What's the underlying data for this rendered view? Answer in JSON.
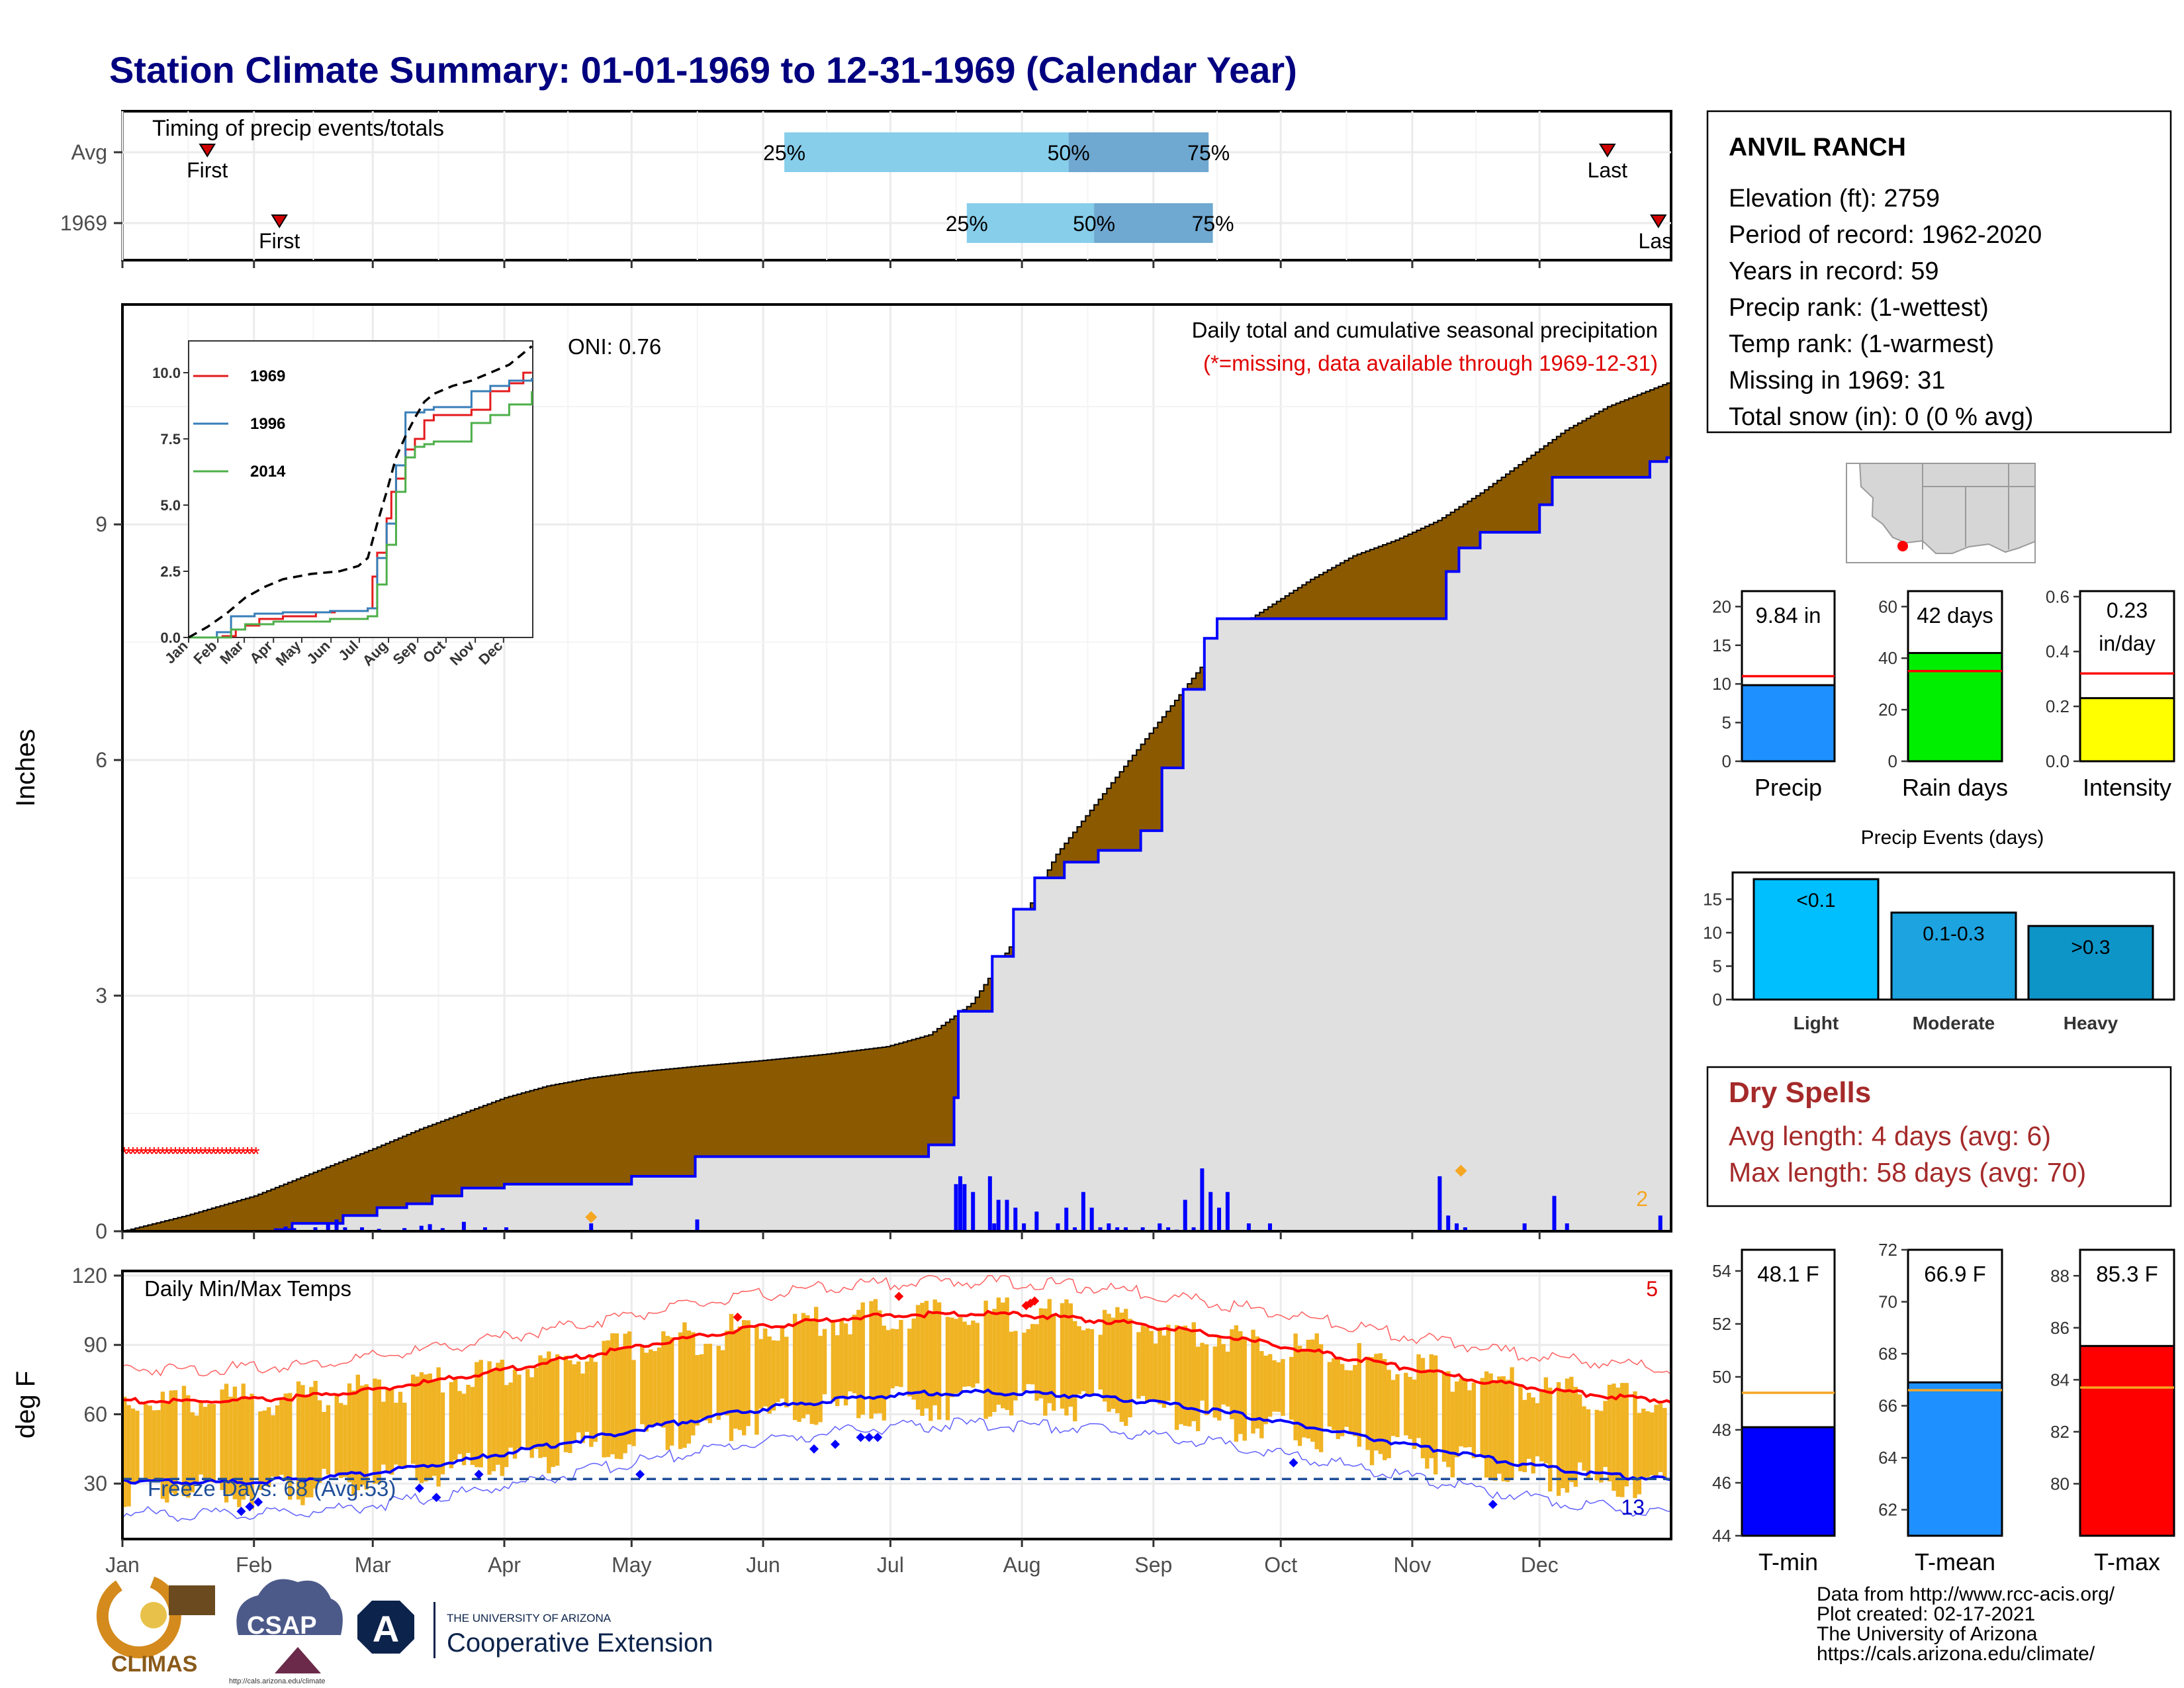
{
  "title": "Station Climate Summary: 01-01-1969 to 12-31-1969 (Calendar Year)",
  "timing_panel": {
    "title": "Timing of precip events/totals",
    "rows": [
      {
        "label": "Avg",
        "first_doy": 20,
        "last_doy": 350,
        "p25_doy": 156,
        "p50_doy": 223,
        "p75_doy": 256,
        "first_label": "First",
        "last_label": "Last",
        "p25_label": "25%",
        "p50_label": "50%",
        "p75_label": "75%"
      },
      {
        "label": "1969",
        "first_doy": 37,
        "last_doy": 362,
        "p25_doy": 199,
        "p50_doy": 229,
        "p75_doy": 257,
        "first_label": "First",
        "last_label": "Last",
        "p25_label": "25%",
        "p50_label": "50%",
        "p75_label": "75%"
      }
    ]
  },
  "precip_panel": {
    "ylabel": "Inches",
    "yticks": [
      0,
      3,
      6,
      9
    ],
    "ylim": [
      0,
      11.8
    ],
    "label_main": "Daily total and cumulative seasonal precipitation",
    "label_missing": "(*=missing, data available through 1969-12-31)",
    "oni_label": "ONI: 0.76",
    "missing_count": "2",
    "missing_range_doy": [
      0,
      31
    ],
    "missing_value": 1.0,
    "avg_cum": [
      [
        0,
        0
      ],
      [
        15,
        0.2
      ],
      [
        31,
        0.45
      ],
      [
        45,
        0.75
      ],
      [
        59,
        1.05
      ],
      [
        70,
        1.3
      ],
      [
        80,
        1.5
      ],
      [
        90,
        1.7
      ],
      [
        100,
        1.85
      ],
      [
        110,
        1.95
      ],
      [
        120,
        2.02
      ],
      [
        135,
        2.1
      ],
      [
        150,
        2.17
      ],
      [
        165,
        2.25
      ],
      [
        180,
        2.35
      ],
      [
        190,
        2.5
      ],
      [
        200,
        2.9
      ],
      [
        210,
        3.7
      ],
      [
        215,
        4.3
      ],
      [
        220,
        4.8
      ],
      [
        230,
        5.5
      ],
      [
        240,
        6.2
      ],
      [
        250,
        6.9
      ],
      [
        260,
        7.6
      ],
      [
        270,
        7.95
      ],
      [
        280,
        8.3
      ],
      [
        290,
        8.6
      ],
      [
        300,
        8.8
      ],
      [
        310,
        9.05
      ],
      [
        320,
        9.4
      ],
      [
        330,
        9.8
      ],
      [
        340,
        10.2
      ],
      [
        350,
        10.5
      ],
      [
        364,
        10.8
      ]
    ],
    "obs_cum": [
      [
        0,
        0
      ],
      [
        36,
        0.02
      ],
      [
        40,
        0.1
      ],
      [
        50,
        0.1
      ],
      [
        52,
        0.2
      ],
      [
        60,
        0.3
      ],
      [
        67,
        0.35
      ],
      [
        73,
        0.45
      ],
      [
        80,
        0.55
      ],
      [
        90,
        0.6
      ],
      [
        120,
        0.7
      ],
      [
        135,
        0.95
      ],
      [
        190,
        1.1
      ],
      [
        195,
        1.1
      ],
      [
        196,
        1.7
      ],
      [
        197,
        2.8
      ],
      [
        205,
        3.5
      ],
      [
        210,
        4.1
      ],
      [
        215,
        4.5
      ],
      [
        222,
        4.7
      ],
      [
        230,
        4.85
      ],
      [
        240,
        5.1
      ],
      [
        245,
        5.9
      ],
      [
        250,
        6.9
      ],
      [
        255,
        7.55
      ],
      [
        258,
        7.8
      ],
      [
        310,
        7.8
      ],
      [
        312,
        8.4
      ],
      [
        315,
        8.7
      ],
      [
        320,
        8.9
      ],
      [
        330,
        8.9
      ],
      [
        334,
        9.25
      ],
      [
        337,
        9.6
      ],
      [
        355,
        9.6
      ],
      [
        360,
        9.8
      ],
      [
        364,
        9.85
      ]
    ],
    "daily_bars": [
      [
        38,
        0.06
      ],
      [
        40,
        0.04
      ],
      [
        45,
        0.05
      ],
      [
        48,
        0.1
      ],
      [
        50,
        0.15
      ],
      [
        52,
        0.05
      ],
      [
        56,
        0.05
      ],
      [
        60,
        0.03
      ],
      [
        66,
        0.04
      ],
      [
        70,
        0.07
      ],
      [
        72,
        0.09
      ],
      [
        75,
        0.04
      ],
      [
        80,
        0.12
      ],
      [
        85,
        0.05
      ],
      [
        90,
        0.05
      ],
      [
        110,
        0.1
      ],
      [
        135,
        0.15
      ],
      [
        196,
        0.6
      ],
      [
        197,
        0.7
      ],
      [
        198,
        0.6
      ],
      [
        200,
        0.5
      ],
      [
        204,
        0.7
      ],
      [
        205,
        0.1
      ],
      [
        206,
        0.4
      ],
      [
        208,
        0.4
      ],
      [
        210,
        0.3
      ],
      [
        212,
        0.1
      ],
      [
        215,
        0.25
      ],
      [
        220,
        0.1
      ],
      [
        222,
        0.3
      ],
      [
        224,
        0.05
      ],
      [
        226,
        0.5
      ],
      [
        228,
        0.3
      ],
      [
        230,
        0.05
      ],
      [
        232,
        0.1
      ],
      [
        234,
        0.05
      ],
      [
        236,
        0.05
      ],
      [
        240,
        0.05
      ],
      [
        244,
        0.1
      ],
      [
        246,
        0.05
      ],
      [
        248,
        0.02
      ],
      [
        250,
        0.4
      ],
      [
        252,
        0.05
      ],
      [
        254,
        0.8
      ],
      [
        256,
        0.5
      ],
      [
        258,
        0.3
      ],
      [
        260,
        0.5
      ],
      [
        265,
        0.1
      ],
      [
        270,
        0.1
      ],
      [
        310,
        0.7
      ],
      [
        312,
        0.2
      ],
      [
        314,
        0.1
      ],
      [
        316,
        0.05
      ],
      [
        330,
        0.1
      ],
      [
        337,
        0.45
      ],
      [
        340,
        0.1
      ],
      [
        362,
        0.2
      ]
    ],
    "extreme_markers_doy": [
      [
        110,
        0.18
      ],
      [
        315,
        0.77
      ]
    ]
  },
  "inset": {
    "yticks": [
      "0.0",
      "2.5",
      "5.0",
      "7.5",
      "10.0"
    ],
    "xticks": [
      "Jan",
      "Feb",
      "Mar",
      "Apr",
      "May",
      "Jun",
      "Jul",
      "Aug",
      "Sep",
      "Oct",
      "Nov",
      "Dec"
    ],
    "series": [
      {
        "name": "1969",
        "color": "#e41a1c",
        "points": [
          [
            0,
            0
          ],
          [
            36,
            0.05
          ],
          [
            50,
            0.3
          ],
          [
            60,
            0.45
          ],
          [
            75,
            0.7
          ],
          [
            100,
            0.8
          ],
          [
            135,
            0.95
          ],
          [
            155,
            1.0
          ],
          [
            190,
            1.1
          ],
          [
            195,
            2.3
          ],
          [
            200,
            3.2
          ],
          [
            210,
            4.5
          ],
          [
            215,
            5.5
          ],
          [
            220,
            6.0
          ],
          [
            230,
            7.1
          ],
          [
            240,
            7.5
          ],
          [
            250,
            8.2
          ],
          [
            260,
            8.4
          ],
          [
            300,
            8.6
          ],
          [
            320,
            9.3
          ],
          [
            340,
            9.6
          ],
          [
            355,
            10.0
          ],
          [
            364,
            10.0
          ]
        ]
      },
      {
        "name": "1996",
        "color": "#377eb8",
        "points": [
          [
            0,
            0
          ],
          [
            30,
            0.2
          ],
          [
            45,
            0.8
          ],
          [
            70,
            0.9
          ],
          [
            100,
            0.95
          ],
          [
            150,
            1.0
          ],
          [
            190,
            1.1
          ],
          [
            200,
            3.0
          ],
          [
            210,
            4.3
          ],
          [
            220,
            6.5
          ],
          [
            230,
            8.5
          ],
          [
            240,
            8.5
          ],
          [
            250,
            8.6
          ],
          [
            260,
            8.7
          ],
          [
            300,
            9.3
          ],
          [
            320,
            9.5
          ],
          [
            340,
            9.7
          ],
          [
            364,
            9.8
          ]
        ]
      },
      {
        "name": "2014",
        "color": "#4daf4a",
        "points": [
          [
            0,
            0
          ],
          [
            45,
            0.3
          ],
          [
            60,
            0.5
          ],
          [
            90,
            0.6
          ],
          [
            150,
            0.7
          ],
          [
            190,
            0.8
          ],
          [
            200,
            2.0
          ],
          [
            210,
            3.5
          ],
          [
            220,
            5.5
          ],
          [
            230,
            6.8
          ],
          [
            240,
            7.2
          ],
          [
            250,
            7.3
          ],
          [
            260,
            7.4
          ],
          [
            300,
            8.1
          ],
          [
            320,
            8.4
          ],
          [
            340,
            8.8
          ],
          [
            364,
            9.3
          ]
        ]
      }
    ],
    "avg_points": [
      [
        0,
        0
      ],
      [
        20,
        0.4
      ],
      [
        40,
        0.9
      ],
      [
        60,
        1.5
      ],
      [
        80,
        1.9
      ],
      [
        100,
        2.2
      ],
      [
        130,
        2.4
      ],
      [
        160,
        2.5
      ],
      [
        180,
        2.7
      ],
      [
        190,
        3.0
      ],
      [
        200,
        4.3
      ],
      [
        210,
        5.5
      ],
      [
        220,
        6.8
      ],
      [
        230,
        7.6
      ],
      [
        240,
        8.3
      ],
      [
        250,
        8.9
      ],
      [
        260,
        9.2
      ],
      [
        280,
        9.5
      ],
      [
        300,
        9.7
      ],
      [
        320,
        10.0
      ],
      [
        340,
        10.3
      ],
      [
        364,
        11.0
      ]
    ]
  },
  "temp_panel": {
    "ylabel": "deg F",
    "yticks": [
      30,
      60,
      90,
      120
    ],
    "ylim": [
      6,
      122
    ],
    "title": "Daily Min/Max Temps",
    "freeze_label": "Freeze Days: 68 (Avg:53)",
    "freeze_line": 32,
    "count_red": "5",
    "count_blue": "13",
    "record_high_doy": [
      [
        145,
        102
      ],
      [
        183,
        111
      ],
      [
        213,
        107
      ],
      [
        214,
        108
      ],
      [
        215,
        109
      ]
    ],
    "record_low_doy": [
      [
        28,
        18
      ],
      [
        30,
        20
      ],
      [
        32,
        22
      ],
      [
        70,
        28
      ],
      [
        74,
        24
      ],
      [
        84,
        34
      ],
      [
        122,
        34
      ],
      [
        163,
        45
      ],
      [
        168,
        47
      ],
      [
        174,
        50
      ],
      [
        176,
        50
      ],
      [
        178,
        50
      ],
      [
        276,
        39
      ],
      [
        323,
        21
      ]
    ],
    "month_ticks": [
      "Jan",
      "Feb",
      "Mar",
      "Apr",
      "May",
      "Jun",
      "Jul",
      "Aug",
      "Sep",
      "Oct",
      "Nov",
      "Dec"
    ],
    "month_starts": [
      0,
      31,
      59,
      90,
      120,
      151,
      181,
      212,
      243,
      273,
      304,
      334
    ]
  },
  "station": {
    "name": "ANVIL RANCH",
    "lines": [
      "Elevation (ft): 2759",
      "Period of record: 1962-2020",
      "Years in record: 59",
      "Precip rank:  (1-wettest)",
      "Temp rank:  (1-warmest)",
      "Missing in 1969: 31",
      "Total snow (in): 0 (0 % avg)"
    ]
  },
  "summary_bars": [
    {
      "label": "Precip",
      "value_label": "9.84 in",
      "value": 9.84,
      "avg": 11.0,
      "ylim": [
        0,
        22
      ],
      "yticks": [
        "0",
        "5",
        "10",
        "15",
        "20"
      ],
      "color": "#1e90ff"
    },
    {
      "label": "Rain days",
      "value_label": "42 days",
      "value": 42,
      "avg": 35,
      "ylim": [
        0,
        66
      ],
      "yticks": [
        "0",
        "20",
        "40",
        "60"
      ],
      "color": "#00ee00"
    },
    {
      "label": "Intensity",
      "value_label": "0.23 in/day",
      "value": 0.23,
      "avg": 0.32,
      "ylim": [
        0,
        0.62
      ],
      "yticks": [
        "0.0",
        "0.2",
        "0.4",
        "0.6"
      ],
      "color": "#ffff00"
    }
  ],
  "precip_events": {
    "title": "Precip Events (days)",
    "yticks": [
      "0",
      "5",
      "10",
      "15"
    ],
    "ylim": [
      0,
      19
    ],
    "bars": [
      {
        "category": "Light",
        "label": "<0.1",
        "value": 18,
        "color": "#00bfff"
      },
      {
        "category": "Moderate",
        "label": "0.1-0.3",
        "value": 13,
        "color": "#1ca3e0"
      },
      {
        "category": "Heavy",
        "label": ">0.3",
        "value": 11,
        "color": "#0e95c8"
      }
    ]
  },
  "dry_spells": {
    "title": "Dry Spells",
    "avg_line": "Avg length: 4 days (avg: 6)",
    "max_line": "Max length: 58 days (avg: 70)"
  },
  "temp_bars": [
    {
      "label": "T-min",
      "value_label": "48.1 F",
      "value": 48.1,
      "avg": 49.4,
      "ylim": [
        44,
        54.8
      ],
      "yticks": [
        "44",
        "46",
        "48",
        "50",
        "52",
        "54"
      ],
      "color": "#0000ff"
    },
    {
      "label": "T-mean",
      "value_label": "66.9 F",
      "value": 66.9,
      "avg": 66.6,
      "ylim": [
        61,
        72
      ],
      "yticks": [
        "62",
        "64",
        "66",
        "68",
        "70",
        "72"
      ],
      "color": "#1e90ff"
    },
    {
      "label": "T-max",
      "value_label": "85.3 F",
      "value": 85.3,
      "avg": 83.7,
      "ylim": [
        78,
        89
      ],
      "yticks": [
        "80",
        "82",
        "84",
        "86",
        "88"
      ],
      "color": "#ff0000"
    }
  ],
  "footer": {
    "lines": [
      "Data from http://www.rcc-acis.org/",
      "Plot created: 02-17-2021",
      "The University of Arizona",
      "https://cals.arizona.edu/climate/"
    ],
    "logo_climas": "CLIMAS",
    "logo_csap": "CSAP",
    "logo_csap_url": "http://cals.arizona.edu/climate",
    "logo_ua_line1": "THE UNIVERSITY OF ARIZONA",
    "logo_ua_line2": "Cooperative Extension",
    "logo_ua_letter": "A"
  },
  "colors": {
    "title": "#000080",
    "brown": "#8b5a00",
    "cum_fill": "#e0e0e0",
    "dry_red": "#a52a2a",
    "temp_bar": "#f0b323",
    "avg_line": "#f5a623"
  }
}
